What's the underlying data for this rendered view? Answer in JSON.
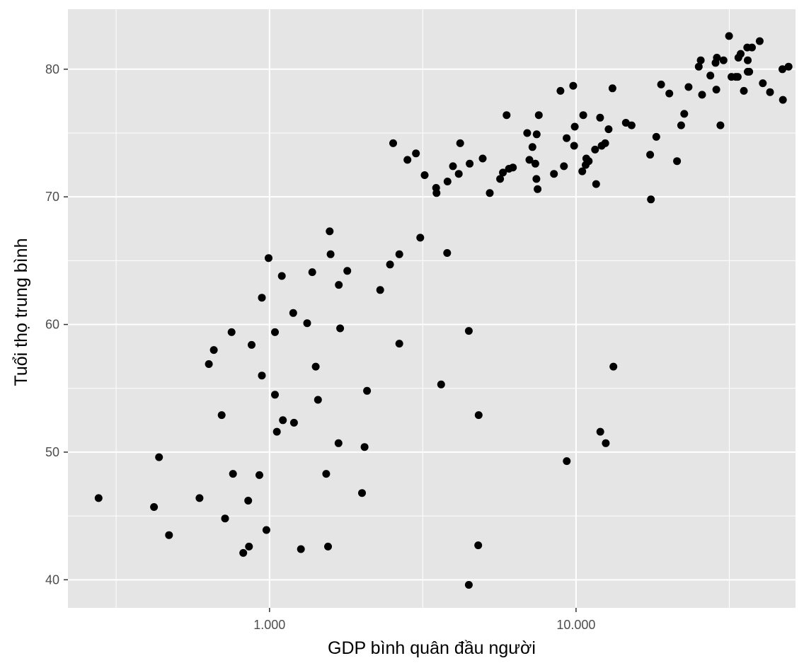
{
  "chart_data": {
    "type": "scatter",
    "xlabel": "GDP bình quân đầu người",
    "ylabel": "Tuổi thọ trung bình",
    "x_scale": "log10",
    "xlim": [
      220,
      52000
    ],
    "ylim": [
      37.8,
      84.7
    ],
    "x_ticks": [
      {
        "value": 1000,
        "label": "1.000"
      },
      {
        "value": 10000,
        "label": "10.000"
      }
    ],
    "x_minor_ticks": [
      316,
      3162,
      31623
    ],
    "y_ticks": [
      {
        "value": 40,
        "label": "40"
      },
      {
        "value": 50,
        "label": "50"
      },
      {
        "value": 60,
        "label": "60"
      },
      {
        "value": 70,
        "label": "70"
      },
      {
        "value": 80,
        "label": "80"
      }
    ],
    "y_minor_ticks": [
      45,
      55,
      65,
      75
    ],
    "grid": true,
    "colors": {
      "panel": "#e5e5e5",
      "grid": "#ffffff",
      "point": "#000000"
    },
    "points": [
      [
        277,
        46.4
      ],
      [
        420,
        45.7
      ],
      [
        436,
        49.6
      ],
      [
        470,
        43.5
      ],
      [
        591,
        46.4
      ],
      [
        634,
        56.9
      ],
      [
        658,
        58.0
      ],
      [
        698,
        52.9
      ],
      [
        716,
        44.8
      ],
      [
        752,
        59.4
      ],
      [
        760,
        48.3
      ],
      [
        821,
        42.1
      ],
      [
        857,
        42.6
      ],
      [
        852,
        46.2
      ],
      [
        874,
        58.4
      ],
      [
        927,
        48.2
      ],
      [
        944,
        56.0
      ],
      [
        944,
        62.1
      ],
      [
        977,
        43.9
      ],
      [
        993,
        65.2
      ],
      [
        1042,
        59.4
      ],
      [
        1042,
        54.5
      ],
      [
        1057,
        51.6
      ],
      [
        1097,
        63.8
      ],
      [
        1106,
        52.5
      ],
      [
        1202,
        52.3
      ],
      [
        1195,
        60.9
      ],
      [
        1266,
        42.4
      ],
      [
        1327,
        60.1
      ],
      [
        1379,
        64.1
      ],
      [
        1439,
        54.1
      ],
      [
        1415,
        56.7
      ],
      [
        1531,
        48.3
      ],
      [
        1552,
        42.6
      ],
      [
        1571,
        67.3
      ],
      [
        1582,
        65.5
      ],
      [
        1683,
        63.1
      ],
      [
        1679,
        50.7
      ],
      [
        1700,
        59.7
      ],
      [
        1794,
        64.2
      ],
      [
        2003,
        46.8
      ],
      [
        2042,
        50.4
      ],
      [
        2081,
        54.8
      ],
      [
        2297,
        62.7
      ],
      [
        2473,
        64.7
      ],
      [
        2532,
        74.2
      ],
      [
        2652,
        65.5
      ],
      [
        2652,
        58.5
      ],
      [
        2818,
        72.9
      ],
      [
        3004,
        73.4
      ],
      [
        3104,
        66.8
      ],
      [
        3207,
        71.7
      ],
      [
        3496,
        70.7
      ],
      [
        3507,
        70.3
      ],
      [
        3631,
        55.3
      ],
      [
        3798,
        65.6
      ],
      [
        3808,
        71.2
      ],
      [
        3967,
        72.4
      ],
      [
        4145,
        71.8
      ],
      [
        4188,
        74.2
      ],
      [
        4470,
        59.5
      ],
      [
        4498,
        72.6
      ],
      [
        4470,
        39.6
      ],
      [
        4811,
        52.9
      ],
      [
        4797,
        42.7
      ],
      [
        4959,
        73.0
      ],
      [
        5231,
        70.3
      ],
      [
        5652,
        71.4
      ],
      [
        5773,
        71.9
      ],
      [
        5937,
        76.4
      ],
      [
        6041,
        72.2
      ],
      [
        6224,
        72.3
      ],
      [
        6931,
        75.0
      ],
      [
        7046,
        72.9
      ],
      [
        7206,
        73.9
      ],
      [
        7367,
        72.6
      ],
      [
        7441,
        74.9
      ],
      [
        7492,
        70.6
      ],
      [
        7425,
        71.4
      ],
      [
        7561,
        76.4
      ],
      [
        8473,
        71.8
      ],
      [
        8896,
        78.3
      ],
      [
        9130,
        72.4
      ],
      [
        9317,
        74.6
      ],
      [
        9788,
        78.7
      ],
      [
        9906,
        75.5
      ],
      [
        9860,
        74.0
      ],
      [
        10480,
        72.0
      ],
      [
        10560,
        76.4
      ],
      [
        10750,
        72.5
      ],
      [
        10800,
        73.0
      ],
      [
        11000,
        72.8
      ],
      [
        11540,
        73.7
      ],
      [
        11630,
        71.0
      ],
      [
        11980,
        76.2
      ],
      [
        12120,
        74.0
      ],
      [
        12450,
        74.2
      ],
      [
        12770,
        75.3
      ],
      [
        13150,
        78.5
      ],
      [
        12000,
        51.6
      ],
      [
        12500,
        50.7
      ],
      [
        13240,
        56.7
      ],
      [
        9329,
        49.3
      ],
      [
        14540,
        75.8
      ],
      [
        15180,
        75.6
      ],
      [
        17450,
        73.3
      ],
      [
        17550,
        69.8
      ],
      [
        18270,
        74.7
      ],
      [
        18950,
        78.8
      ],
      [
        20150,
        78.1
      ],
      [
        21350,
        72.8
      ],
      [
        22020,
        75.6
      ],
      [
        22540,
        76.5
      ],
      [
        23290,
        78.6
      ],
      [
        25140,
        80.2
      ],
      [
        25520,
        80.7
      ],
      [
        25780,
        78.0
      ],
      [
        27430,
        79.5
      ],
      [
        28520,
        80.5
      ],
      [
        28690,
        78.4
      ],
      [
        28800,
        80.9
      ],
      [
        29580,
        75.6
      ],
      [
        30290,
        80.7
      ],
      [
        31560,
        82.6
      ],
      [
        32140,
        79.4
      ],
      [
        33210,
        79.4
      ],
      [
        33690,
        79.4
      ],
      [
        33860,
        80.9
      ],
      [
        34440,
        81.2
      ],
      [
        35270,
        78.3
      ],
      [
        36180,
        81.7
      ],
      [
        36320,
        80.7
      ],
      [
        36320,
        79.8
      ],
      [
        36730,
        79.8
      ],
      [
        37500,
        81.7
      ],
      [
        39730,
        82.2
      ],
      [
        40680,
        78.9
      ],
      [
        42950,
        78.2
      ],
      [
        47140,
        80.0
      ],
      [
        47310,
        77.6
      ],
      [
        49360,
        80.2
      ]
    ]
  }
}
